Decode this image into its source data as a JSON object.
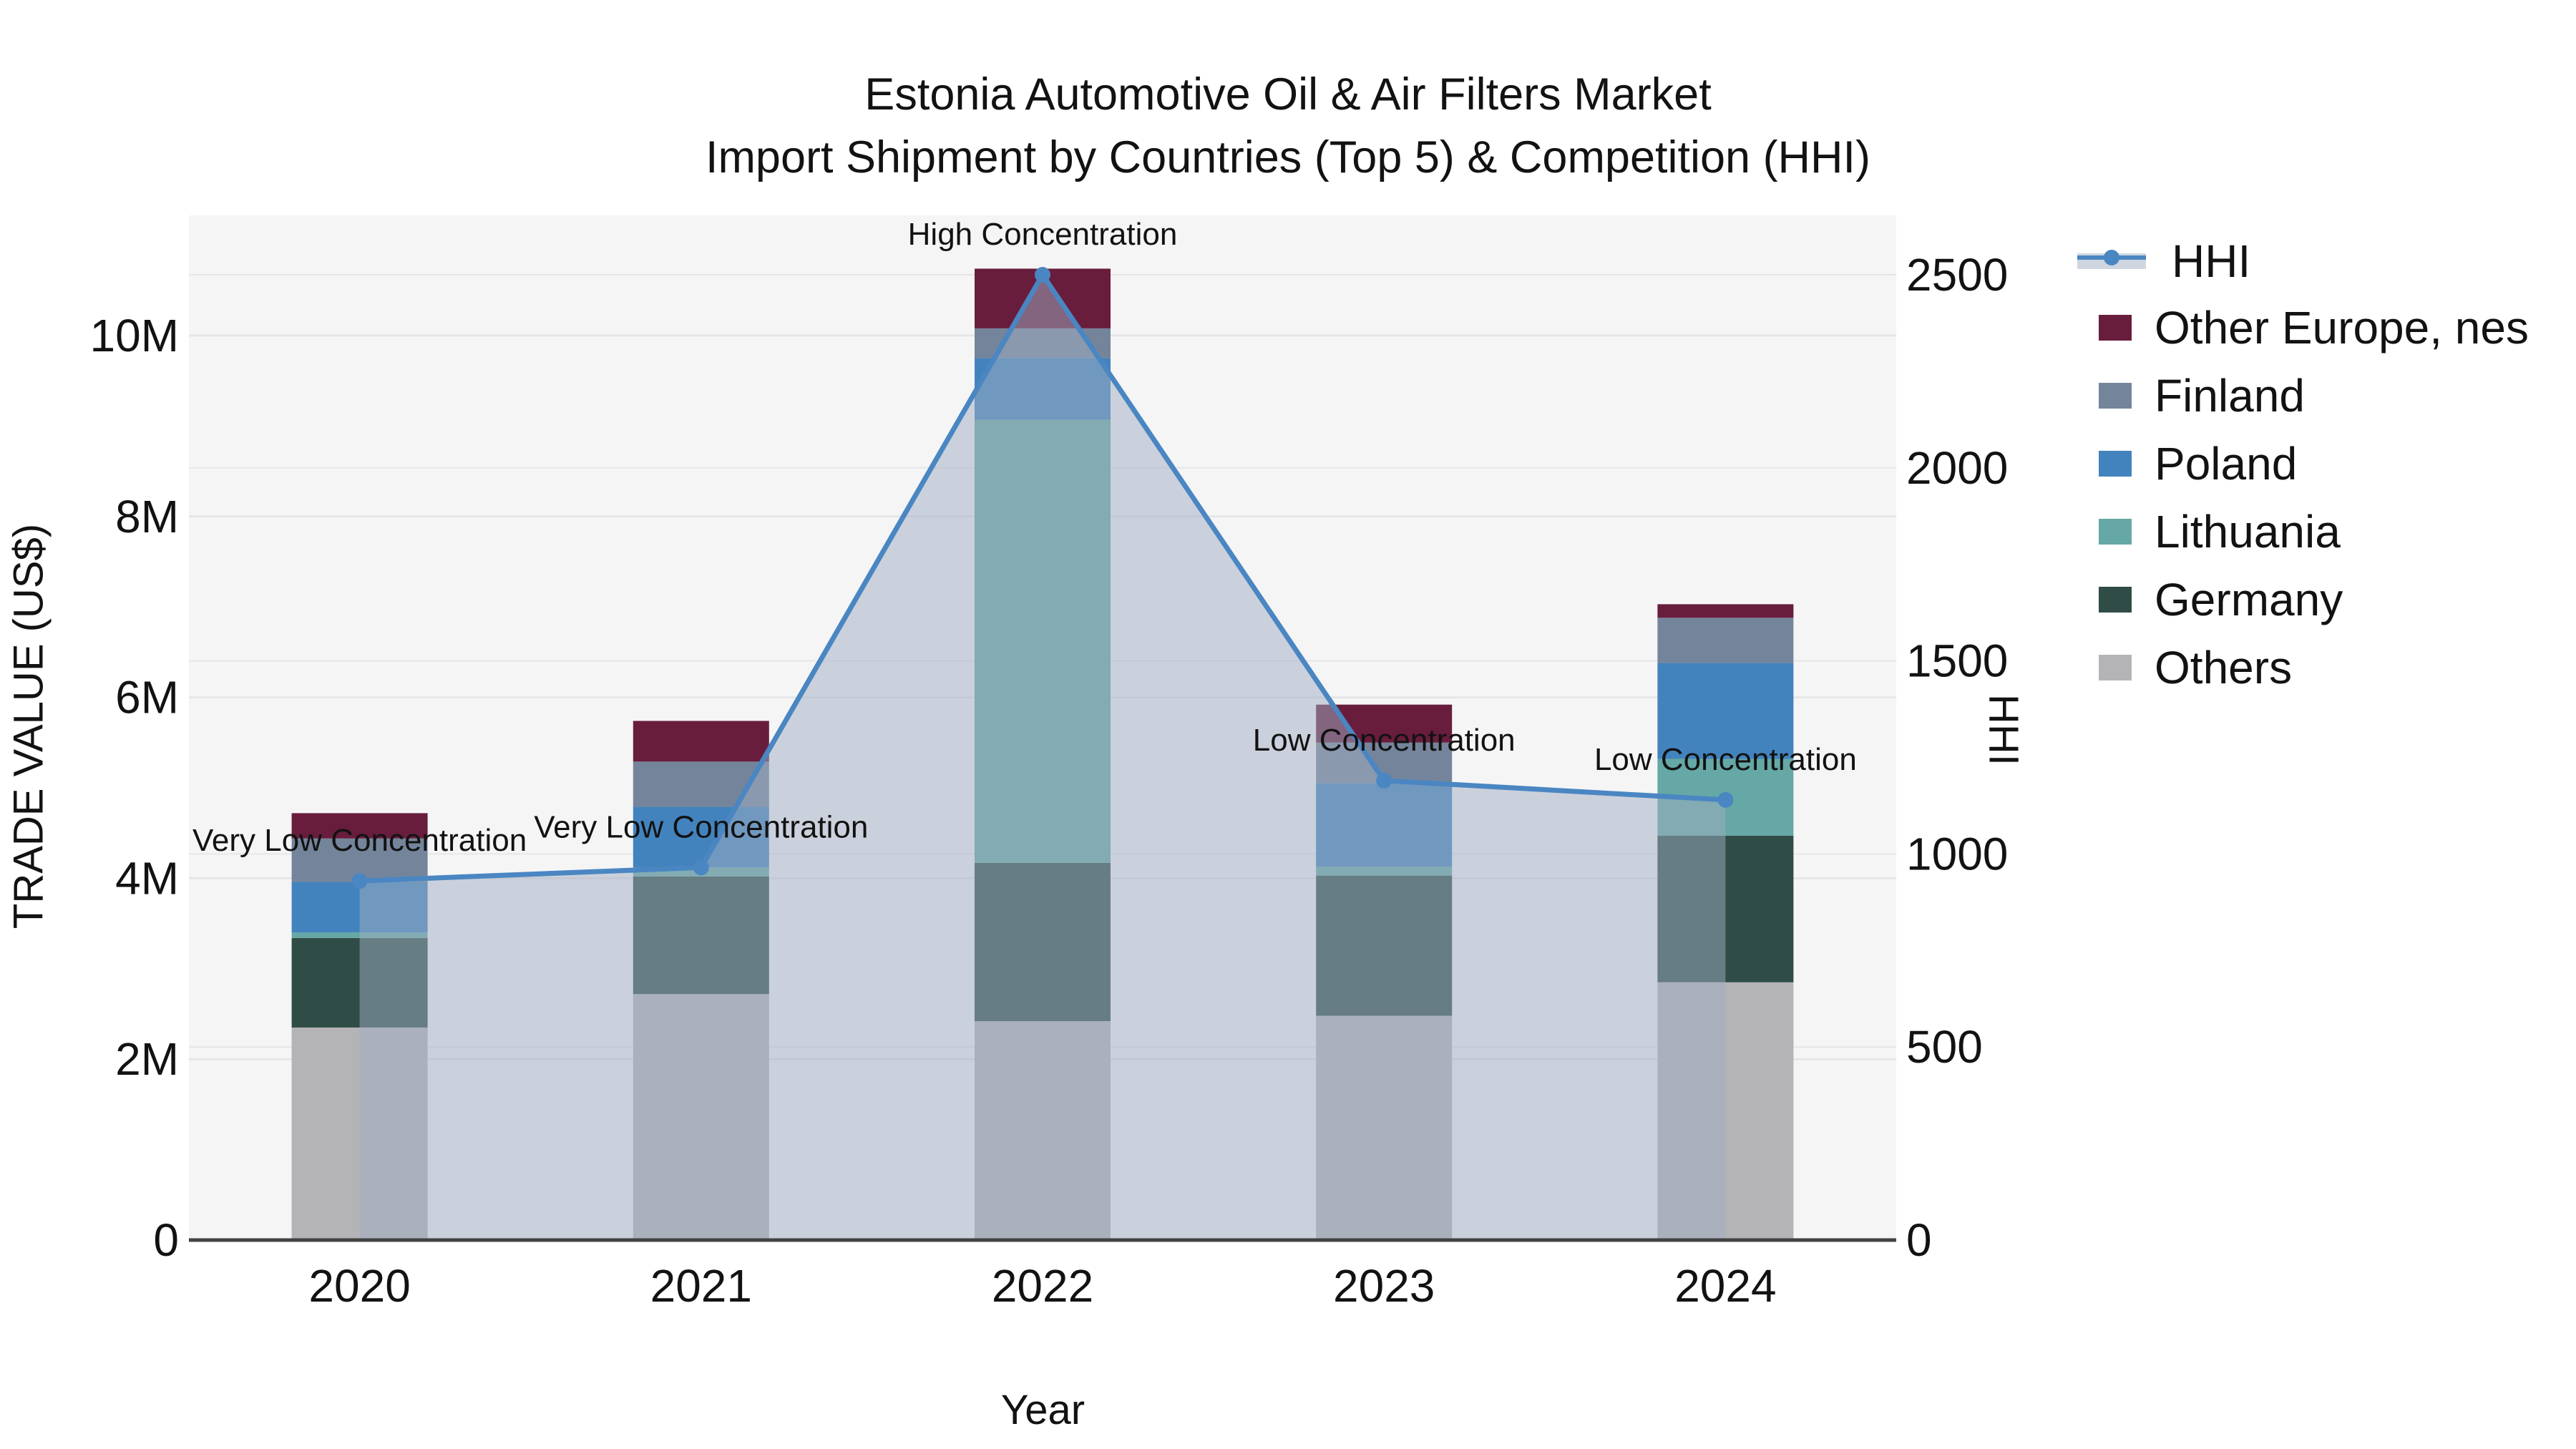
{
  "title": {
    "line1": "Estonia Automotive Oil & Air Filters Market",
    "line2": "Import Shipment by Countries (Top 5) & Competition (HHI)"
  },
  "axes": {
    "x": {
      "label": "Year",
      "ticks": [
        "2020",
        "2021",
        "2022",
        "2023",
        "2024"
      ]
    },
    "y_left": {
      "label": "TRADE VALUE (US$)",
      "ticks": [
        "0",
        "2M",
        "4M",
        "6M",
        "8M",
        "10M"
      ],
      "tick_values_millions": [
        0,
        2,
        4,
        6,
        8,
        10
      ],
      "range_millions": [
        0,
        11.3
      ]
    },
    "y_right": {
      "label": "HHI",
      "ticks": [
        "0",
        "500",
        "1000",
        "1500",
        "2000",
        "2500"
      ],
      "tick_values": [
        0,
        500,
        1000,
        1500,
        2000,
        2500
      ],
      "range": [
        0,
        2650
      ]
    }
  },
  "legend": [
    {
      "label": "HHI",
      "type": "line"
    },
    {
      "label": "Other Europe, nes",
      "type": "swatch",
      "color": "#691d3d"
    },
    {
      "label": "Finland",
      "type": "swatch",
      "color": "#74859b"
    },
    {
      "label": "Poland",
      "type": "swatch",
      "color": "#4383bd"
    },
    {
      "label": "Lithuania",
      "type": "swatch",
      "color": "#65a8a5"
    },
    {
      "label": "Germany",
      "type": "swatch",
      "color": "#2f4c46"
    },
    {
      "label": "Others",
      "type": "swatch",
      "color": "#b4b4b6"
    }
  ],
  "colors": {
    "hhi_line": "#4a86c2",
    "hhi_area_fill": "rgba(160,174,194,0.5)",
    "hhi_area_legend_solid": "#cfd6e0",
    "plot_bg": "#f5f5f6",
    "gridline": "#e4e4e7",
    "axis_line": "#424242",
    "text": "#121212",
    "series": {
      "Others": "#b4b4b6",
      "Germany": "#2f4c46",
      "Lithuania": "#65a8a5",
      "Poland": "#4383bd",
      "Finland": "#74859b",
      "Other Europe, nes": "#691d3d"
    }
  },
  "chart_data": {
    "type": "combo: stacked bars (trade value, left axis) + line with markers and shaded area (HHI, right axis)",
    "categories": [
      "2020",
      "2021",
      "2022",
      "2023",
      "2024"
    ],
    "units": "bar values in millions of US$",
    "stack_order_bottom_to_top": [
      "Others",
      "Germany",
      "Lithuania",
      "Poland",
      "Finland",
      "Other Europe, nes"
    ],
    "series": [
      {
        "name": "Others",
        "values": [
          2.35,
          2.72,
          2.42,
          2.48,
          2.85
        ]
      },
      {
        "name": "Germany",
        "values": [
          0.99,
          1.3,
          1.75,
          1.55,
          1.62
        ]
      },
      {
        "name": "Lithuania",
        "values": [
          0.06,
          0.1,
          4.9,
          0.1,
          0.85
        ]
      },
      {
        "name": "Poland",
        "values": [
          0.56,
          0.67,
          0.68,
          0.92,
          1.06
        ]
      },
      {
        "name": "Finland",
        "values": [
          0.48,
          0.5,
          0.33,
          0.45,
          0.5
        ]
      },
      {
        "name": "Other Europe, nes",
        "values": [
          0.28,
          0.45,
          0.66,
          0.42,
          0.15
        ]
      }
    ],
    "bar_totals_millions": [
      4.72,
      5.74,
      10.74,
      5.92,
      7.03
    ],
    "hhi_series": {
      "name": "HHI",
      "values": [
        930,
        965,
        2500,
        1190,
        1140
      ]
    },
    "annotations": [
      {
        "year": "2020",
        "text": "Very Low Concentration"
      },
      {
        "year": "2021",
        "text": "Very Low Concentration"
      },
      {
        "year": "2022",
        "text": "High Concentration"
      },
      {
        "year": "2023",
        "text": "Low Concentration"
      },
      {
        "year": "2024",
        "text": "Low Concentration"
      }
    ],
    "legend_position": "right",
    "grid": "horizontal gridlines for both y axes"
  }
}
